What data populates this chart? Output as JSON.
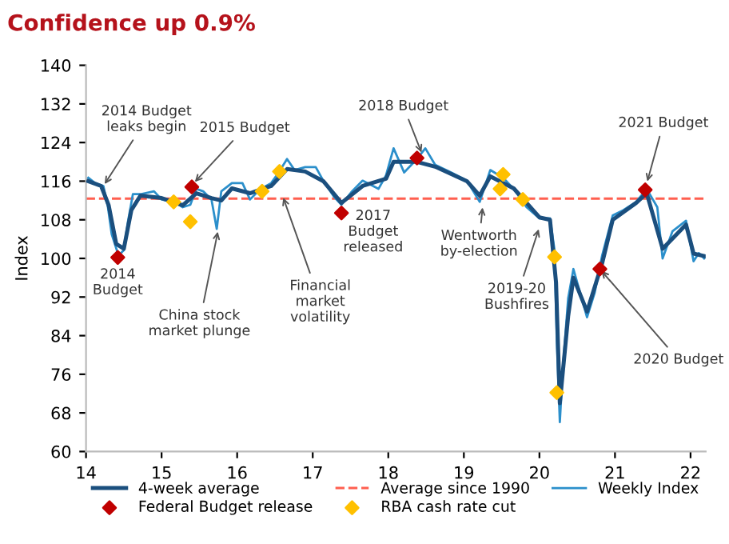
{
  "chart_data": {
    "type": "line",
    "title": "Confidence up 0.9%",
    "ylabel": "Index",
    "xlim": [
      14,
      22.2
    ],
    "xticks": [
      14,
      15,
      16,
      17,
      18,
      19,
      20,
      21,
      22
    ],
    "ylim": [
      60,
      140
    ],
    "yticks": [
      60,
      68,
      76,
      84,
      92,
      100,
      108,
      116,
      124,
      132,
      140
    ],
    "grid": false,
    "legend": "bottom",
    "ref_lines": [
      {
        "axis": "y",
        "value": 112.4,
        "label": "Average since 1990",
        "color": "#ff5f4f",
        "line_style": "dashed"
      }
    ],
    "series": [
      {
        "name": "Weekly Index",
        "color": "#2b8fcb",
        "x": [
          14.03,
          14.12,
          14.23,
          14.29,
          14.34,
          14.43,
          14.5,
          14.55,
          14.62,
          14.72,
          14.9,
          15.0,
          15.17,
          15.28,
          15.38,
          15.46,
          15.55,
          15.66,
          15.73,
          15.79,
          15.93,
          16.07,
          16.17,
          16.31,
          16.45,
          16.55,
          16.66,
          16.76,
          16.9,
          17.04,
          17.14,
          17.28,
          17.38,
          17.52,
          17.66,
          17.87,
          17.97,
          18.07,
          18.21,
          18.38,
          18.49,
          18.62,
          18.83,
          19.04,
          19.21,
          19.35,
          19.52,
          19.66,
          19.83,
          20.0,
          20.14,
          20.2,
          20.23,
          20.27,
          20.31,
          20.38,
          20.45,
          20.52,
          20.63,
          20.73,
          20.83,
          20.97,
          21.11,
          21.28,
          21.42,
          21.56,
          21.63,
          21.76,
          21.94,
          22.04,
          22.11,
          22.18
        ],
        "values": [
          116.7,
          115.6,
          115,
          110.6,
          105,
          100.6,
          101.7,
          107.2,
          113.3,
          113.3,
          113.9,
          112.2,
          111.7,
          110.6,
          111.1,
          114.4,
          113.9,
          112.2,
          106.1,
          113.9,
          115.6,
          115.6,
          112.2,
          114.4,
          115.6,
          117.8,
          120.6,
          118.3,
          118.9,
          118.9,
          116.1,
          112.8,
          111.1,
          113.9,
          116.1,
          114.4,
          117.2,
          122.8,
          117.8,
          120.6,
          122.8,
          119.4,
          117.8,
          116.1,
          111.7,
          118.3,
          116.7,
          114.4,
          110.6,
          108.3,
          108.3,
          101.7,
          82.8,
          66.1,
          77.2,
          91.7,
          97.8,
          93.9,
          87.8,
          92.8,
          100.6,
          108.9,
          110,
          111.7,
          114.4,
          110.6,
          100,
          105.6,
          107.8,
          99.4,
          101.1,
          100
        ]
      },
      {
        "name": "4-week average",
        "color": "#1b4f7e",
        "x": [
          14.03,
          14.2,
          14.3,
          14.4,
          14.5,
          14.6,
          14.72,
          15.0,
          15.28,
          15.46,
          15.66,
          15.79,
          15.93,
          16.17,
          16.45,
          16.66,
          16.9,
          17.14,
          17.38,
          17.66,
          17.97,
          18.07,
          18.38,
          18.62,
          19.04,
          19.21,
          19.35,
          19.66,
          20.0,
          20.14,
          20.22,
          20.27,
          20.38,
          20.45,
          20.63,
          20.83,
          20.97,
          21.28,
          21.42,
          21.63,
          21.94,
          22.04,
          22.18
        ],
        "values": [
          116,
          115,
          111,
          103,
          102,
          110,
          113,
          112.5,
          111,
          113.5,
          112.5,
          112,
          114.5,
          113.5,
          115,
          118.5,
          118,
          116,
          111.5,
          115,
          116.5,
          120,
          120,
          119,
          116,
          113,
          117,
          114.5,
          108.5,
          108,
          95,
          70,
          88,
          96,
          89,
          99,
          108,
          111.5,
          113.5,
          102,
          107,
          101,
          100.5
        ]
      },
      {
        "name": "Federal Budget release",
        "type": "scatter",
        "marker": "diamond",
        "color": "#c00000",
        "x": [
          14.42,
          15.4,
          17.38,
          18.38,
          20.8,
          21.4
        ],
        "values": [
          100.2,
          114.8,
          109.4,
          120.8,
          97.8,
          114.2
        ]
      },
      {
        "name": "RBA cash rate cut",
        "type": "scatter",
        "marker": "diamond",
        "color": "#ffc000",
        "x": [
          15.16,
          15.38,
          16.33,
          16.56,
          19.48,
          19.52,
          19.78,
          20.2,
          20.23
        ],
        "values": [
          111.7,
          107.6,
          113.9,
          118,
          114.4,
          117.4,
          112.2,
          100.3,
          72.2
        ]
      }
    ],
    "annotations": [
      {
        "text": "2014 Budget\nleaks begin",
        "x": 14.23,
        "y": 115
      },
      {
        "text": "2015 Budget",
        "x": 15.42,
        "y": 115.5
      },
      {
        "text": "2014\nBudget",
        "x": 14.42,
        "y": 100.2
      },
      {
        "text": "China stock\nmarket plunge",
        "x": 15.75,
        "y": 106
      },
      {
        "text": "Financial\nmarket\nvolatility",
        "x": 16.6,
        "y": 113
      },
      {
        "text": "2017\nBudget\nreleased",
        "x": 17.38,
        "y": 109.4
      },
      {
        "text": "2018 Budget",
        "x": 18.45,
        "y": 121.5
      },
      {
        "text": "Wentworth\nby-election",
        "x": 19.25,
        "y": 111
      },
      {
        "text": "2019-20\nBushfires",
        "x": 20.0,
        "y": 106.5
      },
      {
        "text": "2020 Budget",
        "x": 20.8,
        "y": 97.8
      },
      {
        "text": "2021 Budget",
        "x": 21.42,
        "y": 115.5
      }
    ]
  }
}
